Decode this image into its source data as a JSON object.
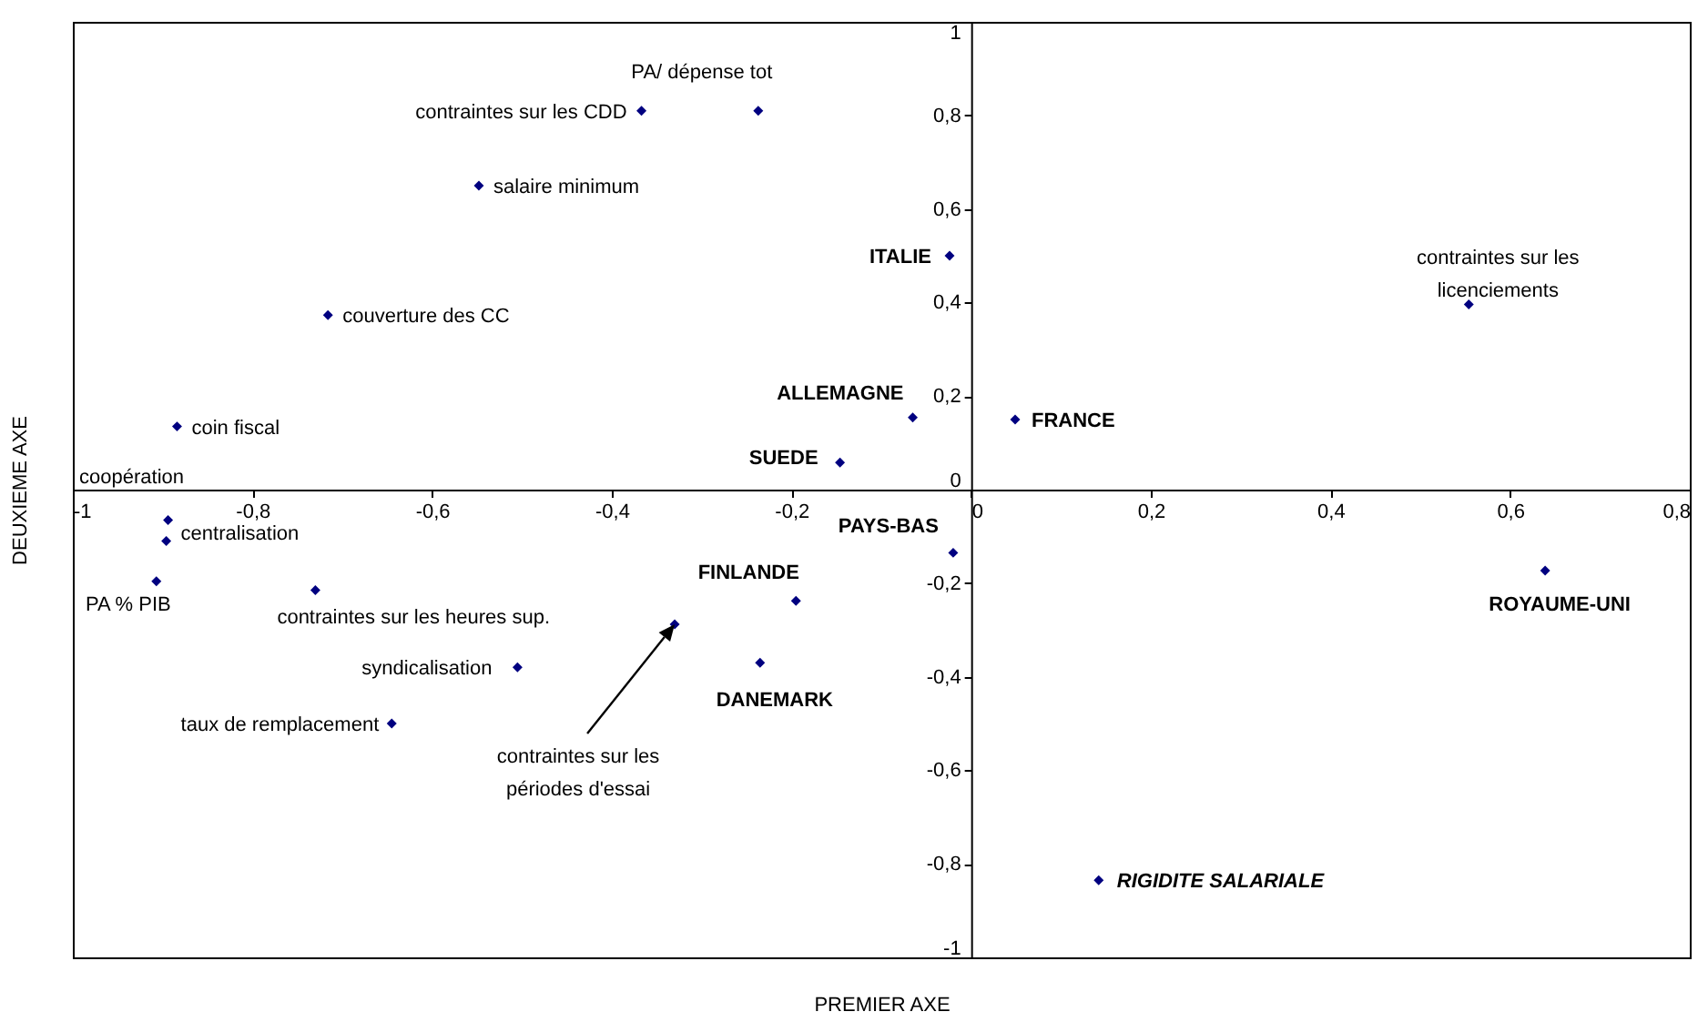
{
  "chart_data": {
    "type": "scatter",
    "xlabel": "PREMIER AXE",
    "ylabel": "DEUXIEME AXE",
    "x": [
      -0.237,
      -0.367,
      -0.548,
      -0.024,
      -0.716,
      0.554,
      -0.884,
      -0.065,
      0.049,
      -0.146,
      -0.894,
      -0.896,
      -0.02,
      0.639,
      -0.907,
      -0.73,
      -0.195,
      -0.33,
      -0.235,
      -0.505,
      -0.645,
      0.142
    ],
    "series": [
      {
        "color": "#000080",
        "values": [
          0.81,
          0.81,
          0.65,
          0.5,
          0.373,
          0.396,
          0.135,
          0.154,
          0.15,
          0.058,
          -0.065,
          -0.11,
          -0.135,
          -0.173,
          -0.196,
          -0.215,
          -0.238,
          -0.288,
          -0.37,
          -0.38,
          -0.5,
          -0.835
        ]
      }
    ],
    "marker": "diamond",
    "xlim": [
      -1,
      0.8
    ],
    "ylim": [
      -1,
      1
    ],
    "xticks": [
      {
        "value": -1,
        "label": "-1"
      },
      {
        "value": -0.8,
        "label": "-0,8"
      },
      {
        "value": -0.6,
        "label": "-0,6"
      },
      {
        "value": -0.4,
        "label": "-0,4"
      },
      {
        "value": -0.2,
        "label": "-0,2"
      },
      {
        "value": 0,
        "label": "0"
      },
      {
        "value": 0.2,
        "label": "0,2"
      },
      {
        "value": 0.4,
        "label": "0,4"
      },
      {
        "value": 0.6,
        "label": "0,6"
      },
      {
        "value": 0.8,
        "label": "0,8"
      }
    ],
    "yticks": [
      {
        "value": -1,
        "label": "-1"
      },
      {
        "value": -0.8,
        "label": "-0,8"
      },
      {
        "value": -0.6,
        "label": "-0,6"
      },
      {
        "value": -0.4,
        "label": "-0,4"
      },
      {
        "value": -0.2,
        "label": "-0,2"
      },
      {
        "value": 0,
        "label": "0"
      },
      {
        "value": 0.2,
        "label": "0,2"
      },
      {
        "value": 0.4,
        "label": "0,4"
      },
      {
        "value": 0.6,
        "label": "0,6"
      },
      {
        "value": 0.8,
        "label": "0,8"
      },
      {
        "value": 1,
        "label": "1"
      }
    ],
    "grid": false,
    "annotations": [
      {
        "text": "PA/ dépense tot",
        "x": -0.237,
        "y": 0.81
      },
      {
        "text": "contraintes sur les CDD",
        "x": -0.367,
        "y": 0.81
      },
      {
        "text": "salaire minimum",
        "x": -0.548,
        "y": 0.65
      },
      {
        "text": "ITALIE",
        "x": -0.024,
        "y": 0.5
      },
      {
        "text": "couverture des CC",
        "x": -0.716,
        "y": 0.373
      },
      {
        "text": "contraintes sur les licenciements",
        "x": 0.554,
        "y": 0.396
      },
      {
        "text": "coin fiscal",
        "x": -0.884,
        "y": 0.135
      },
      {
        "text": "ALLEMAGNE",
        "x": -0.065,
        "y": 0.154
      },
      {
        "text": "FRANCE",
        "x": 0.049,
        "y": 0.15
      },
      {
        "text": "SUEDE",
        "x": -0.146,
        "y": 0.058
      },
      {
        "text": "coopération",
        "x": -0.894,
        "y": -0.065
      },
      {
        "text": "centralisation",
        "x": -0.896,
        "y": -0.11
      },
      {
        "text": "PAYS-BAS",
        "x": -0.02,
        "y": -0.135
      },
      {
        "text": "ROYAUME-UNI",
        "x": 0.639,
        "y": -0.173
      },
      {
        "text": "PA % PIB",
        "x": -0.907,
        "y": -0.196
      },
      {
        "text": "contraintes sur les heures sup.",
        "x": -0.73,
        "y": -0.215
      },
      {
        "text": "FINLANDE",
        "x": -0.195,
        "y": -0.238
      },
      {
        "text": "contraintes sur les périodes d'essai",
        "x": -0.33,
        "y": -0.288
      },
      {
        "text": "DANEMARK",
        "x": -0.235,
        "y": -0.37
      },
      {
        "text": "syndicalisation",
        "x": -0.505,
        "y": -0.38
      },
      {
        "text": "taux de remplacement",
        "x": -0.645,
        "y": -0.5
      },
      {
        "text": "RIGIDITE SALARIALE",
        "x": 0.142,
        "y": -0.835
      }
    ]
  }
}
